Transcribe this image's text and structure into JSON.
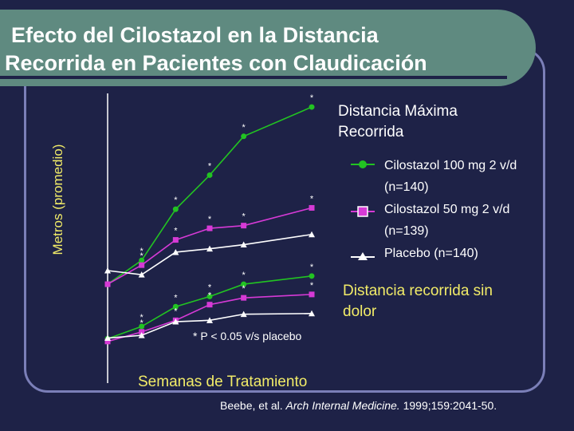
{
  "title_line1": "Efecto del Cilostazol en la Distancia",
  "title_line2": "Recorrida en Pacientes con Claudicación",
  "chart_data": {
    "type": "line",
    "ylabel": "Metros (promedio)",
    "xlabel": "Semanas de Tratamiento",
    "x": [
      0,
      4,
      8,
      12,
      16,
      24
    ],
    "groups": [
      {
        "name": "Distancia Máxima Recorrida",
        "series": [
          {
            "name": "Cilostazol 100 mg 2 v/d",
            "n": "(n=140)",
            "color": "#22c322",
            "marker": "circle",
            "values": [
              190,
              225,
              300,
              350,
              407,
              450
            ],
            "significant": [
              false,
              true,
              true,
              true,
              true,
              true
            ]
          },
          {
            "name": "Cilostazol 50 mg 2 v/d",
            "n": "(n=139)",
            "color": "#d63ad6",
            "marker": "square",
            "values": [
              190,
              218,
              255,
              272,
              276,
              302
            ],
            "significant": [
              false,
              true,
              true,
              true,
              true,
              true
            ]
          },
          {
            "name": "Placebo",
            "n": "(n=140)",
            "color": "#ffffff",
            "marker": "triangle",
            "values": [
              210,
              204,
              237,
              242,
              248,
              263
            ],
            "significant": [
              false,
              false,
              false,
              false,
              false,
              false
            ]
          }
        ]
      },
      {
        "name": "Distancia recorrida sin dolor",
        "series": [
          {
            "name": "Cilostazol 100 mg 2 v/d",
            "color": "#22c322",
            "marker": "circle",
            "values": [
              110,
              128,
              157,
              172,
              190,
              202
            ],
            "significant": [
              false,
              true,
              true,
              true,
              true,
              true
            ]
          },
          {
            "name": "Cilostazol 50 mg 2 v/d",
            "color": "#d63ad6",
            "marker": "square",
            "values": [
              106,
              120,
              137,
              160,
              170,
              175
            ],
            "significant": [
              false,
              true,
              true,
              true,
              true,
              true
            ]
          },
          {
            "name": "Placebo",
            "color": "#ffffff",
            "marker": "triangle",
            "values": [
              111,
              115,
              135,
              137,
              146,
              147
            ],
            "significant": [
              false,
              false,
              false,
              false,
              false,
              false
            ]
          }
        ]
      }
    ],
    "legend_title": "Distancia Máxima\nRecorrida",
    "legend": [
      {
        "label": "Cilostazol 100 mg 2 v/d",
        "n": "(n=140)"
      },
      {
        "label": "Cilostazol 50 mg 2 v/d",
        "n": "(n=139)"
      },
      {
        "label": "Placebo (n=140)",
        "n": ""
      }
    ],
    "second_group_title": "Distancia recorrida sin\ndolor",
    "significance_note": "* P < 0.05 v/s placebo",
    "ylim": [
      80,
      470
    ],
    "xlim": [
      0,
      24
    ],
    "grid": false
  },
  "citation_authors": "Beebe, et al.",
  "citation_journal": "Arch Internal Medicine.",
  "citation_ref": "1999;159:2041-50."
}
